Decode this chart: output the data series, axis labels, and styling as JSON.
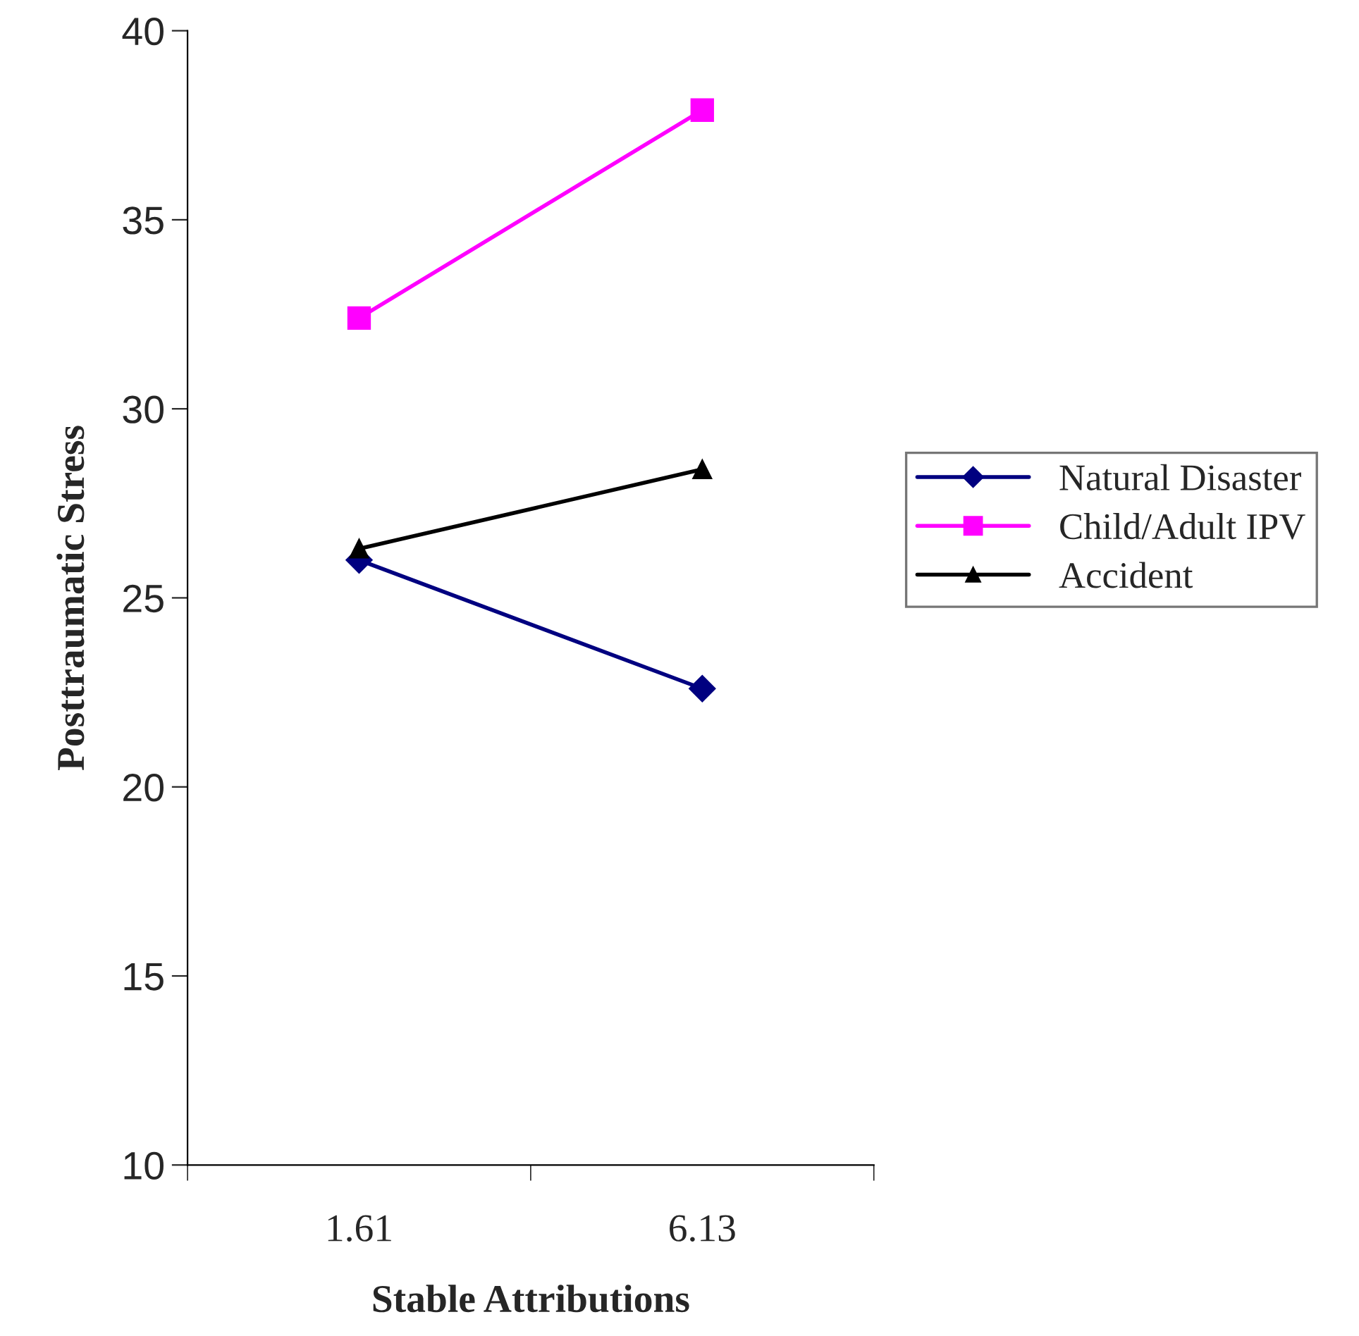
{
  "chart_data": {
    "type": "line",
    "xlabel": "Stable Attributions",
    "ylabel": "Posttraumatic Stress",
    "categories": [
      "1.61",
      "6.13"
    ],
    "series": [
      {
        "name": "Natural Disaster",
        "color": "#000080",
        "marker": "diamond",
        "values": [
          26.0,
          22.6
        ]
      },
      {
        "name": "Child/Adult IPV",
        "color": "#ff00ff",
        "marker": "square",
        "values": [
          32.4,
          37.9
        ]
      },
      {
        "name": "Accident",
        "color": "#000000",
        "marker": "triangle",
        "values": [
          26.3,
          28.4
        ]
      }
    ],
    "ylim": [
      10,
      40
    ],
    "yticks": [
      10,
      15,
      20,
      25,
      30,
      35,
      40
    ],
    "grid": false,
    "legend": "right",
    "line_style": "solid"
  }
}
